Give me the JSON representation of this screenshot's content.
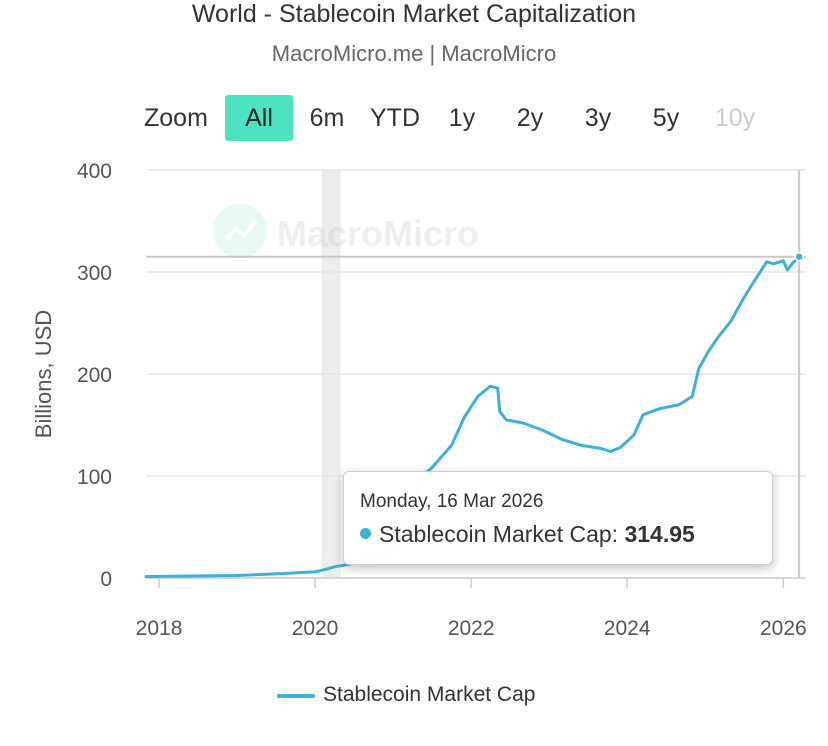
{
  "title": "World - Stablecoin Market Capitalization",
  "subtitle": "MacroMicro.me | MacroMicro",
  "watermark": "MacroMicro",
  "range_selector": {
    "zoom_label": "Zoom",
    "buttons": [
      {
        "label": "All",
        "state": "active"
      },
      {
        "label": "6m",
        "state": "normal"
      },
      {
        "label": "YTD",
        "state": "normal"
      },
      {
        "label": "1y",
        "state": "normal"
      },
      {
        "label": "2y",
        "state": "normal"
      },
      {
        "label": "3y",
        "state": "normal"
      },
      {
        "label": "5y",
        "state": "normal"
      },
      {
        "label": "10y",
        "state": "disabled"
      }
    ]
  },
  "tooltip": {
    "date": "Monday, 16 Mar 2026",
    "series_label": "Stablecoin Market Cap: ",
    "value": "314.95"
  },
  "legend": {
    "label": "Stablecoin Market Cap"
  },
  "colors": {
    "series": "#3fb0d8",
    "accent": "#4be3c0",
    "grid": "#e6e6e6",
    "shade": "#ededed"
  },
  "chart_data": {
    "type": "line",
    "title": "World - Stablecoin Market Capitalization",
    "ylabel": "Billions, USD",
    "xlabel": "",
    "ylim": [
      0,
      400
    ],
    "xlim": [
      "2017-11-01",
      "2026-03-20"
    ],
    "y_ticks": [
      0,
      100,
      200,
      300,
      400
    ],
    "x_ticks": [
      "2018",
      "2020",
      "2022",
      "2024",
      "2026"
    ],
    "shaded_period": [
      "2020-02-01",
      "2020-04-30"
    ],
    "reference_line": 314.95,
    "grid": true,
    "legend_position": "bottom",
    "series": [
      {
        "name": "Stablecoin Market Cap",
        "x": [
          "2017-11-01",
          "2018-06-01",
          "2019-01-01",
          "2019-07-01",
          "2020-01-01",
          "2020-03-01",
          "2020-04-01",
          "2020-06-01",
          "2020-09-01",
          "2020-12-01",
          "2021-02-01",
          "2021-04-01",
          "2021-05-15",
          "2021-07-01",
          "2021-10-01",
          "2021-12-01",
          "2022-02-01",
          "2022-04-01",
          "2022-05-05",
          "2022-05-15",
          "2022-06-15",
          "2022-09-01",
          "2022-12-01",
          "2023-03-01",
          "2023-06-01",
          "2023-09-01",
          "2023-10-15",
          "2023-12-01",
          "2024-02-01",
          "2024-03-15",
          "2024-06-01",
          "2024-09-01",
          "2024-11-01",
          "2024-12-01",
          "2025-01-15",
          "2025-03-01",
          "2025-05-01",
          "2025-07-01",
          "2025-08-15",
          "2025-10-15",
          "2025-11-15",
          "2026-01-01",
          "2026-01-20",
          "2026-02-15",
          "2026-03-16"
        ],
        "y": [
          1.5,
          2,
          2.5,
          4,
          6,
          9,
          11,
          13,
          18,
          25,
          38,
          62,
          100,
          108,
          130,
          158,
          178,
          188,
          186,
          163,
          155,
          152,
          145,
          136,
          130,
          127,
          124,
          128,
          140,
          160,
          166,
          170,
          178,
          205,
          222,
          236,
          252,
          275,
          290,
          310,
          308,
          311,
          302,
          309,
          314.95
        ]
      }
    ]
  }
}
